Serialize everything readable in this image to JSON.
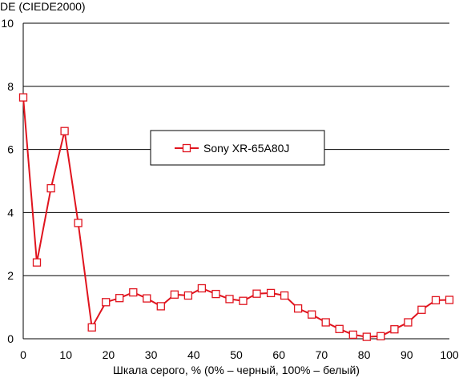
{
  "chart_data": {
    "type": "line",
    "title": "",
    "ylabel": "DE (CIEDE2000)",
    "xlabel": "Шкала серого, % (0% – черный, 100% – белый)",
    "xlim": [
      0,
      100
    ],
    "ylim": [
      0,
      10
    ],
    "x_ticks": [
      0,
      10,
      20,
      30,
      40,
      50,
      60,
      70,
      80,
      90,
      100
    ],
    "y_ticks": [
      0,
      2,
      4,
      6,
      8,
      10
    ],
    "grid": "horizontal",
    "legend_position": "center",
    "series": [
      {
        "name": "Sony XR-65A80J",
        "color": "#e0141e",
        "marker": "open-square",
        "x": [
          0,
          3.2,
          6.5,
          9.7,
          12.9,
          16.1,
          19.4,
          22.6,
          25.8,
          29.0,
          32.3,
          35.5,
          38.7,
          41.9,
          45.2,
          48.4,
          51.6,
          54.8,
          58.1,
          61.3,
          64.5,
          67.7,
          71.0,
          74.2,
          77.4,
          80.6,
          83.9,
          87.1,
          90.3,
          93.5,
          96.8,
          100
        ],
        "values": [
          7.65,
          2.42,
          4.77,
          6.58,
          3.67,
          0.36,
          1.16,
          1.29,
          1.47,
          1.28,
          1.03,
          1.4,
          1.37,
          1.6,
          1.42,
          1.26,
          1.2,
          1.43,
          1.45,
          1.37,
          0.96,
          0.77,
          0.52,
          0.31,
          0.13,
          0.06,
          0.08,
          0.3,
          0.52,
          0.92,
          1.22,
          1.23
        ]
      }
    ]
  }
}
